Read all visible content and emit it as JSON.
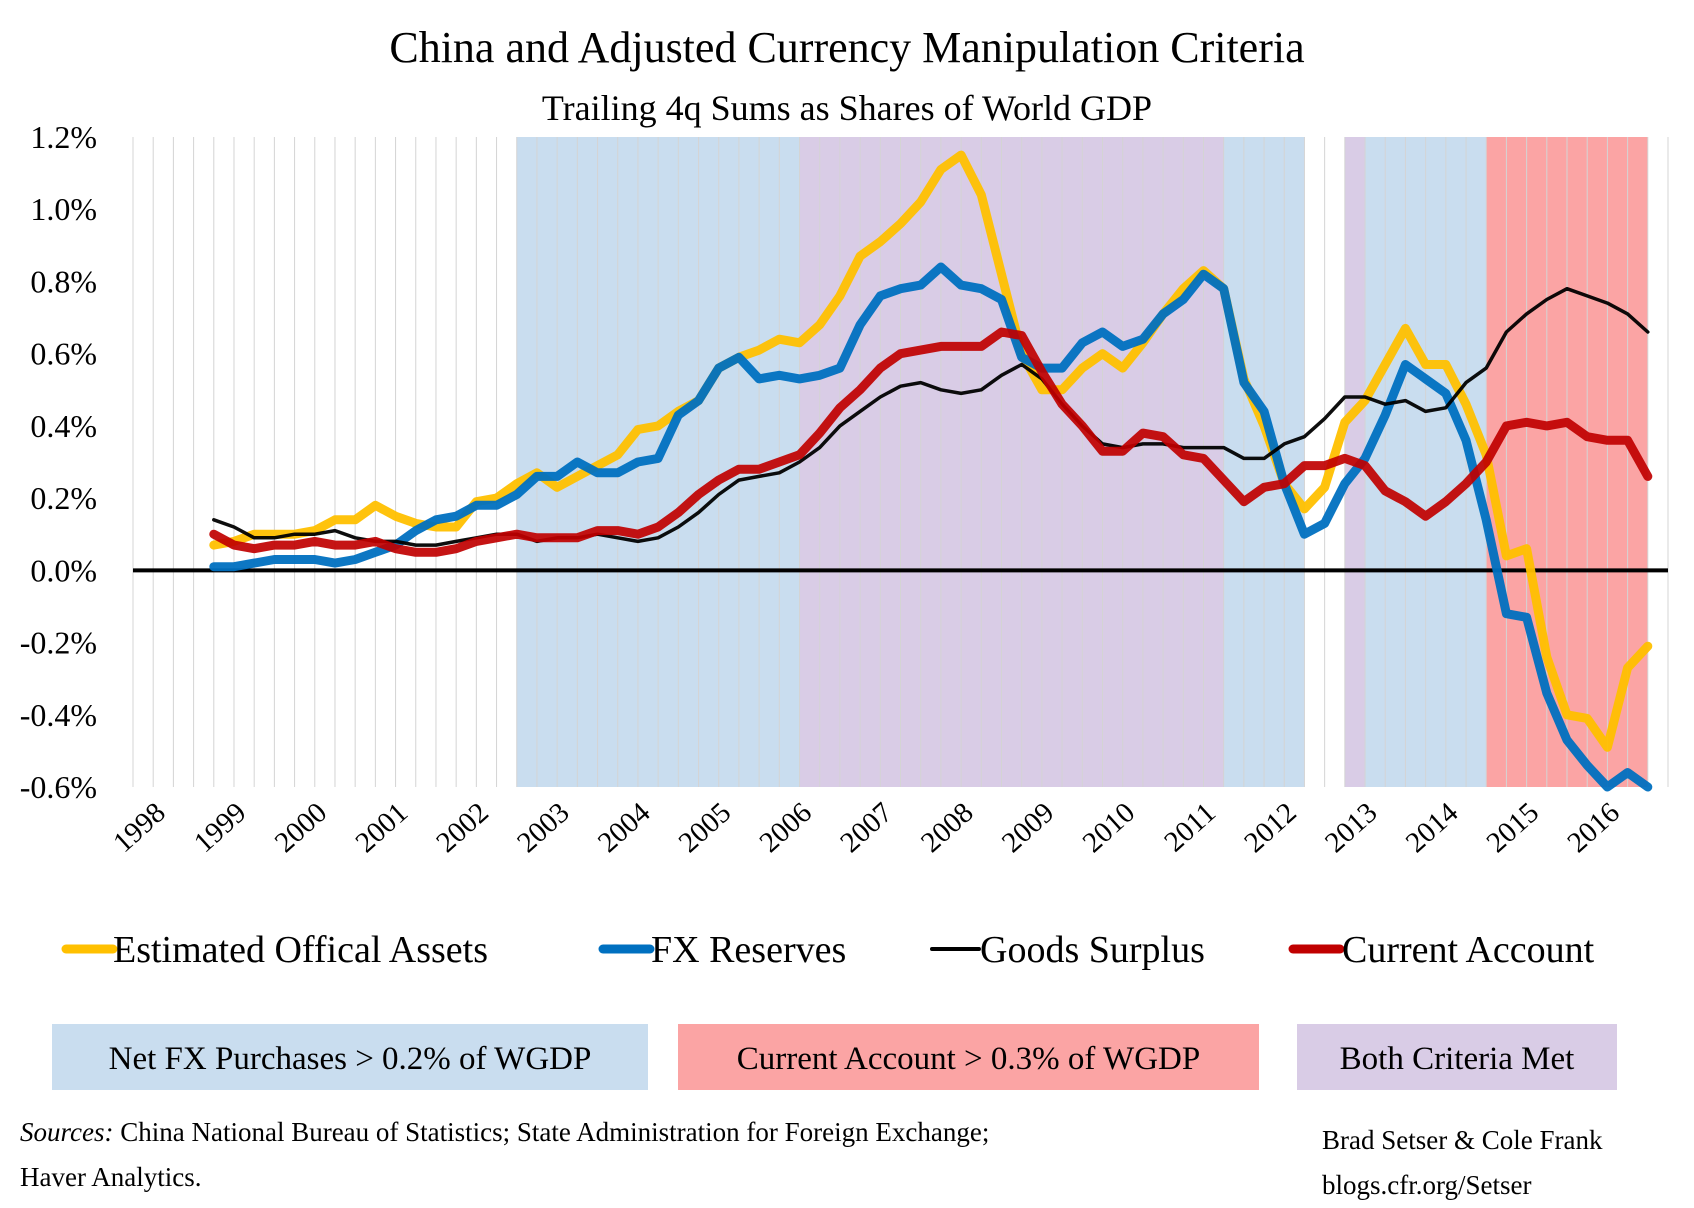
{
  "chart_data": {
    "type": "line",
    "title": "China and Adjusted Currency Manipulation Criteria",
    "subtitle": "Trailing 4q Sums as Shares of World GDP",
    "ylim": [
      -0.6,
      1.2
    ],
    "y_ticks": [
      "1.2%",
      "1.0%",
      "0.8%",
      "0.6%",
      "0.4%",
      "0.2%",
      "0.0%",
      "-0.2%",
      "-0.4%",
      "-0.6%"
    ],
    "x_ticks": [
      "1998",
      "1999",
      "2000",
      "2001",
      "2002",
      "2003",
      "2004",
      "2005",
      "2006",
      "2007",
      "2008",
      "2009",
      "2010",
      "2011",
      "2012",
      "2013",
      "2014",
      "2015",
      "2016"
    ],
    "xlim": [
      1998.0,
      2017.0
    ],
    "grid": "vertical quarterly",
    "series": [
      {
        "name": "Estimated Offical Assets",
        "color": "#FFC000",
        "x": [
          1999.0,
          1999.25,
          1999.5,
          1999.75,
          2000.0,
          2000.25,
          2000.5,
          2000.75,
          2001.0,
          2001.25,
          2001.5,
          2001.75,
          2002.0,
          2002.25,
          2002.5,
          2002.75,
          2003.0,
          2003.25,
          2003.5,
          2003.75,
          2004.0,
          2004.25,
          2004.5,
          2004.75,
          2005.0,
          2005.25,
          2005.5,
          2005.75,
          2006.0,
          2006.25,
          2006.5,
          2006.75,
          2007.0,
          2007.25,
          2007.5,
          2007.75,
          2008.0,
          2008.25,
          2008.5,
          2008.75,
          2009.0,
          2009.25,
          2009.5,
          2009.75,
          2010.0,
          2010.25,
          2010.5,
          2010.75,
          2011.0,
          2011.25,
          2011.5,
          2011.75,
          2012.0,
          2012.25,
          2012.5,
          2012.75,
          2013.0,
          2013.25,
          2013.5,
          2013.75,
          2014.0,
          2014.25,
          2014.5,
          2014.75,
          2015.0,
          2015.25,
          2015.5,
          2015.75,
          2016.0,
          2016.25,
          2016.5,
          2016.75
        ],
        "values": [
          0.07,
          0.08,
          0.1,
          0.1,
          0.1,
          0.11,
          0.14,
          0.14,
          0.18,
          0.15,
          0.13,
          0.12,
          0.12,
          0.19,
          0.2,
          0.24,
          0.27,
          0.23,
          0.26,
          0.29,
          0.32,
          0.39,
          0.4,
          0.44,
          0.47,
          0.56,
          0.59,
          0.61,
          0.64,
          0.63,
          0.68,
          0.76,
          0.87,
          0.91,
          0.96,
          1.02,
          1.11,
          1.15,
          1.04,
          0.82,
          0.6,
          0.5,
          0.5,
          0.56,
          0.6,
          0.56,
          0.63,
          0.71,
          0.78,
          0.83,
          0.78,
          0.53,
          0.4,
          0.24,
          0.17,
          0.23,
          0.41,
          0.47,
          0.57,
          0.67,
          0.57,
          0.57,
          0.46,
          0.32,
          0.04,
          0.06,
          -0.24,
          -0.4,
          -0.41,
          -0.49,
          -0.27,
          -0.21
        ]
      },
      {
        "name": "FX Reserves",
        "color": "#0070C0",
        "x": [
          1999.0,
          1999.25,
          1999.5,
          1999.75,
          2000.0,
          2000.25,
          2000.5,
          2000.75,
          2001.0,
          2001.25,
          2001.5,
          2001.75,
          2002.0,
          2002.25,
          2002.5,
          2002.75,
          2003.0,
          2003.25,
          2003.5,
          2003.75,
          2004.0,
          2004.25,
          2004.5,
          2004.75,
          2005.0,
          2005.25,
          2005.5,
          2005.75,
          2006.0,
          2006.25,
          2006.5,
          2006.75,
          2007.0,
          2007.25,
          2007.5,
          2007.75,
          2008.0,
          2008.25,
          2008.5,
          2008.75,
          2009.0,
          2009.25,
          2009.5,
          2009.75,
          2010.0,
          2010.25,
          2010.5,
          2010.75,
          2011.0,
          2011.25,
          2011.5,
          2011.75,
          2012.0,
          2012.25,
          2012.5,
          2012.75,
          2013.0,
          2013.25,
          2013.5,
          2013.75,
          2014.0,
          2014.25,
          2014.5,
          2014.75,
          2015.0,
          2015.25,
          2015.5,
          2015.75,
          2016.0,
          2016.25,
          2016.5,
          2016.75
        ],
        "values": [
          0.01,
          0.01,
          0.02,
          0.03,
          0.03,
          0.03,
          0.02,
          0.03,
          0.05,
          0.07,
          0.11,
          0.14,
          0.15,
          0.18,
          0.18,
          0.21,
          0.26,
          0.26,
          0.3,
          0.27,
          0.27,
          0.3,
          0.31,
          0.43,
          0.47,
          0.56,
          0.59,
          0.53,
          0.54,
          0.53,
          0.54,
          0.56,
          0.68,
          0.76,
          0.78,
          0.79,
          0.84,
          0.79,
          0.78,
          0.75,
          0.59,
          0.56,
          0.56,
          0.63,
          0.66,
          0.62,
          0.64,
          0.71,
          0.75,
          0.82,
          0.78,
          0.52,
          0.44,
          0.24,
          0.1,
          0.13,
          0.24,
          0.31,
          0.43,
          0.57,
          0.53,
          0.49,
          0.36,
          0.14,
          -0.12,
          -0.13,
          -0.34,
          -0.47,
          -0.54,
          -0.6,
          -0.56,
          -0.6
        ]
      },
      {
        "name": "Goods Surplus",
        "color": "#000000",
        "x": [
          1999.0,
          1999.25,
          1999.5,
          1999.75,
          2000.0,
          2000.25,
          2000.5,
          2000.75,
          2001.0,
          2001.25,
          2001.5,
          2001.75,
          2002.0,
          2002.25,
          2002.5,
          2002.75,
          2003.0,
          2003.25,
          2003.5,
          2003.75,
          2004.0,
          2004.25,
          2004.5,
          2004.75,
          2005.0,
          2005.25,
          2005.5,
          2005.75,
          2006.0,
          2006.25,
          2006.5,
          2006.75,
          2007.0,
          2007.25,
          2007.5,
          2007.75,
          2008.0,
          2008.25,
          2008.5,
          2008.75,
          2009.0,
          2009.25,
          2009.5,
          2009.75,
          2010.0,
          2010.25,
          2010.5,
          2010.75,
          2011.0,
          2011.25,
          2011.5,
          2011.75,
          2012.0,
          2012.25,
          2012.5,
          2012.75,
          2013.0,
          2013.25,
          2013.5,
          2013.75,
          2014.0,
          2014.25,
          2014.5,
          2014.75,
          2015.0,
          2015.25,
          2015.5,
          2015.75,
          2016.0,
          2016.25,
          2016.5,
          2016.75
        ],
        "values": [
          0.14,
          0.12,
          0.09,
          0.09,
          0.1,
          0.1,
          0.11,
          0.09,
          0.08,
          0.08,
          0.07,
          0.07,
          0.08,
          0.09,
          0.1,
          0.1,
          0.08,
          0.09,
          0.09,
          0.1,
          0.09,
          0.08,
          0.09,
          0.12,
          0.16,
          0.21,
          0.25,
          0.26,
          0.27,
          0.3,
          0.34,
          0.4,
          0.44,
          0.48,
          0.51,
          0.52,
          0.5,
          0.49,
          0.5,
          0.54,
          0.57,
          0.53,
          0.46,
          0.4,
          0.35,
          0.34,
          0.35,
          0.35,
          0.34,
          0.34,
          0.34,
          0.31,
          0.31,
          0.35,
          0.37,
          0.42,
          0.48,
          0.48,
          0.46,
          0.47,
          0.44,
          0.45,
          0.52,
          0.56,
          0.66,
          0.71,
          0.75,
          0.78,
          0.76,
          0.74,
          0.71,
          0.66
        ]
      },
      {
        "name": "Current Account",
        "color": "#C00000",
        "x": [
          1999.0,
          1999.25,
          1999.5,
          1999.75,
          2000.0,
          2000.25,
          2000.5,
          2000.75,
          2001.0,
          2001.25,
          2001.5,
          2001.75,
          2002.0,
          2002.25,
          2002.5,
          2002.75,
          2003.0,
          2003.25,
          2003.5,
          2003.75,
          2004.0,
          2004.25,
          2004.5,
          2004.75,
          2005.0,
          2005.25,
          2005.5,
          2005.75,
          2006.0,
          2006.25,
          2006.5,
          2006.75,
          2007.0,
          2007.25,
          2007.5,
          2007.75,
          2008.0,
          2008.25,
          2008.5,
          2008.75,
          2009.0,
          2009.25,
          2009.5,
          2009.75,
          2010.0,
          2010.25,
          2010.5,
          2010.75,
          2011.0,
          2011.25,
          2011.5,
          2011.75,
          2012.0,
          2012.25,
          2012.5,
          2012.75,
          2013.0,
          2013.25,
          2013.5,
          2013.75,
          2014.0,
          2014.25,
          2014.5,
          2014.75,
          2015.0,
          2015.25,
          2015.5,
          2015.75,
          2016.0,
          2016.25,
          2016.5,
          2016.75
        ],
        "values": [
          0.1,
          0.07,
          0.06,
          0.07,
          0.07,
          0.08,
          0.07,
          0.07,
          0.08,
          0.06,
          0.05,
          0.05,
          0.06,
          0.08,
          0.09,
          0.1,
          0.09,
          0.09,
          0.09,
          0.11,
          0.11,
          0.1,
          0.12,
          0.16,
          0.21,
          0.25,
          0.28,
          0.28,
          0.3,
          0.32,
          0.38,
          0.45,
          0.5,
          0.56,
          0.6,
          0.61,
          0.62,
          0.62,
          0.62,
          0.66,
          0.65,
          0.55,
          0.46,
          0.4,
          0.33,
          0.33,
          0.38,
          0.37,
          0.32,
          0.31,
          0.25,
          0.19,
          0.23,
          0.24,
          0.29,
          0.29,
          0.31,
          0.29,
          0.22,
          0.19,
          0.15,
          0.19,
          0.24,
          0.3,
          0.4,
          0.41,
          0.4,
          0.41,
          0.37,
          0.36,
          0.36,
          0.26
        ]
      }
    ],
    "bands": [
      {
        "from": 2002.75,
        "to": 2006.25,
        "type": "fx"
      },
      {
        "from": 2006.25,
        "to": 2011.5,
        "type": "both"
      },
      {
        "from": 2011.5,
        "to": 2012.5,
        "type": "fx"
      },
      {
        "from": 2013.0,
        "to": 2013.25,
        "type": "both"
      },
      {
        "from": 2013.25,
        "to": 2014.75,
        "type": "fx"
      },
      {
        "from": 2014.75,
        "to": 2016.75,
        "type": "ca"
      }
    ],
    "band_legend": [
      {
        "type": "fx",
        "label": "Net FX Purchases > 0.2% of WGDP",
        "color": "#C9DDEF"
      },
      {
        "type": "ca",
        "label": "Current Account > 0.3% of WGDP",
        "color": "#FBA4A4"
      },
      {
        "type": "both",
        "label": "Both Criteria Met",
        "color": "#D9CCE6"
      }
    ]
  },
  "footer": {
    "sources_label": "Sources:",
    "sources_line1": " China National Bureau of Statistics; State Administration for Foreign Exchange;",
    "sources_line2": "Haver Analytics.",
    "author": "Brad Setser & Cole Frank",
    "url": "blogs.cfr.org/Setser"
  }
}
